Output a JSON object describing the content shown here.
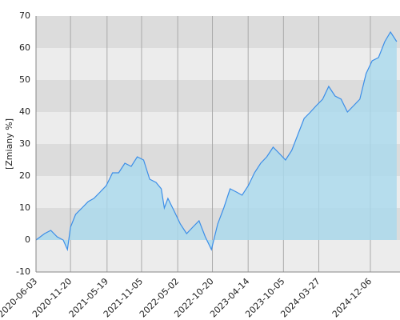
{
  "chart_data": {
    "type": "area",
    "y_label": "[Zmiany %]",
    "xlim": [
      "2020-06-03",
      "2025-05-01"
    ],
    "xticks": [
      "2020-06-03",
      "2020-11-20",
      "2021-05-19",
      "2021-11-05",
      "2022-05-02",
      "2022-10-20",
      "2023-04-14",
      "2023-10-05",
      "2024-03-27",
      "2024-12-06"
    ],
    "ylim": [
      -10,
      70
    ],
    "yticks": [
      -10,
      0,
      10,
      20,
      30,
      40,
      50,
      60,
      70
    ],
    "grid": true,
    "band_colors": [
      "#ececec",
      "#dcdcdc"
    ],
    "x": [
      "2020-06-03",
      "2020-07-15",
      "2020-08-15",
      "2020-09-15",
      "2020-10-15",
      "2020-11-05",
      "2020-11-20",
      "2020-12-15",
      "2021-01-15",
      "2021-02-15",
      "2021-03-15",
      "2021-04-15",
      "2021-05-15",
      "2021-06-15",
      "2021-07-15",
      "2021-08-15",
      "2021-09-15",
      "2021-10-15",
      "2021-11-15",
      "2021-12-15",
      "2022-01-15",
      "2022-02-10",
      "2022-02-25",
      "2022-03-15",
      "2022-04-15",
      "2022-05-15",
      "2022-06-15",
      "2022-07-15",
      "2022-08-15",
      "2022-09-15",
      "2022-10-15",
      "2022-11-15",
      "2022-12-15",
      "2023-01-15",
      "2023-02-15",
      "2023-03-15",
      "2023-04-15",
      "2023-05-15",
      "2023-06-15",
      "2023-07-15",
      "2023-08-15",
      "2023-09-15",
      "2023-10-15",
      "2023-11-15",
      "2023-12-15",
      "2024-01-15",
      "2024-02-15",
      "2024-03-15",
      "2024-04-15",
      "2024-05-15",
      "2024-06-15",
      "2024-07-15",
      "2024-08-15",
      "2024-09-15",
      "2024-10-15",
      "2024-11-15",
      "2024-12-15",
      "2025-01-15",
      "2025-02-15",
      "2025-03-15",
      "2025-04-15"
    ],
    "series": [
      {
        "name": "Zmiany",
        "color": "#3c8ee8",
        "fill": "#a9d9ee",
        "values": [
          0,
          2,
          3,
          1,
          0,
          -3,
          4,
          8,
          10,
          12,
          13,
          15,
          17,
          21,
          21,
          24,
          23,
          26,
          25,
          19,
          18,
          16,
          10,
          13,
          9,
          5,
          2,
          4,
          6,
          1,
          -3,
          5,
          10,
          16,
          15,
          14,
          17,
          21,
          24,
          26,
          29,
          27,
          25,
          28,
          33,
          38,
          40,
          42,
          44,
          48,
          45,
          44,
          40,
          42,
          44,
          52,
          56,
          57,
          62,
          65,
          62
        ]
      }
    ]
  }
}
